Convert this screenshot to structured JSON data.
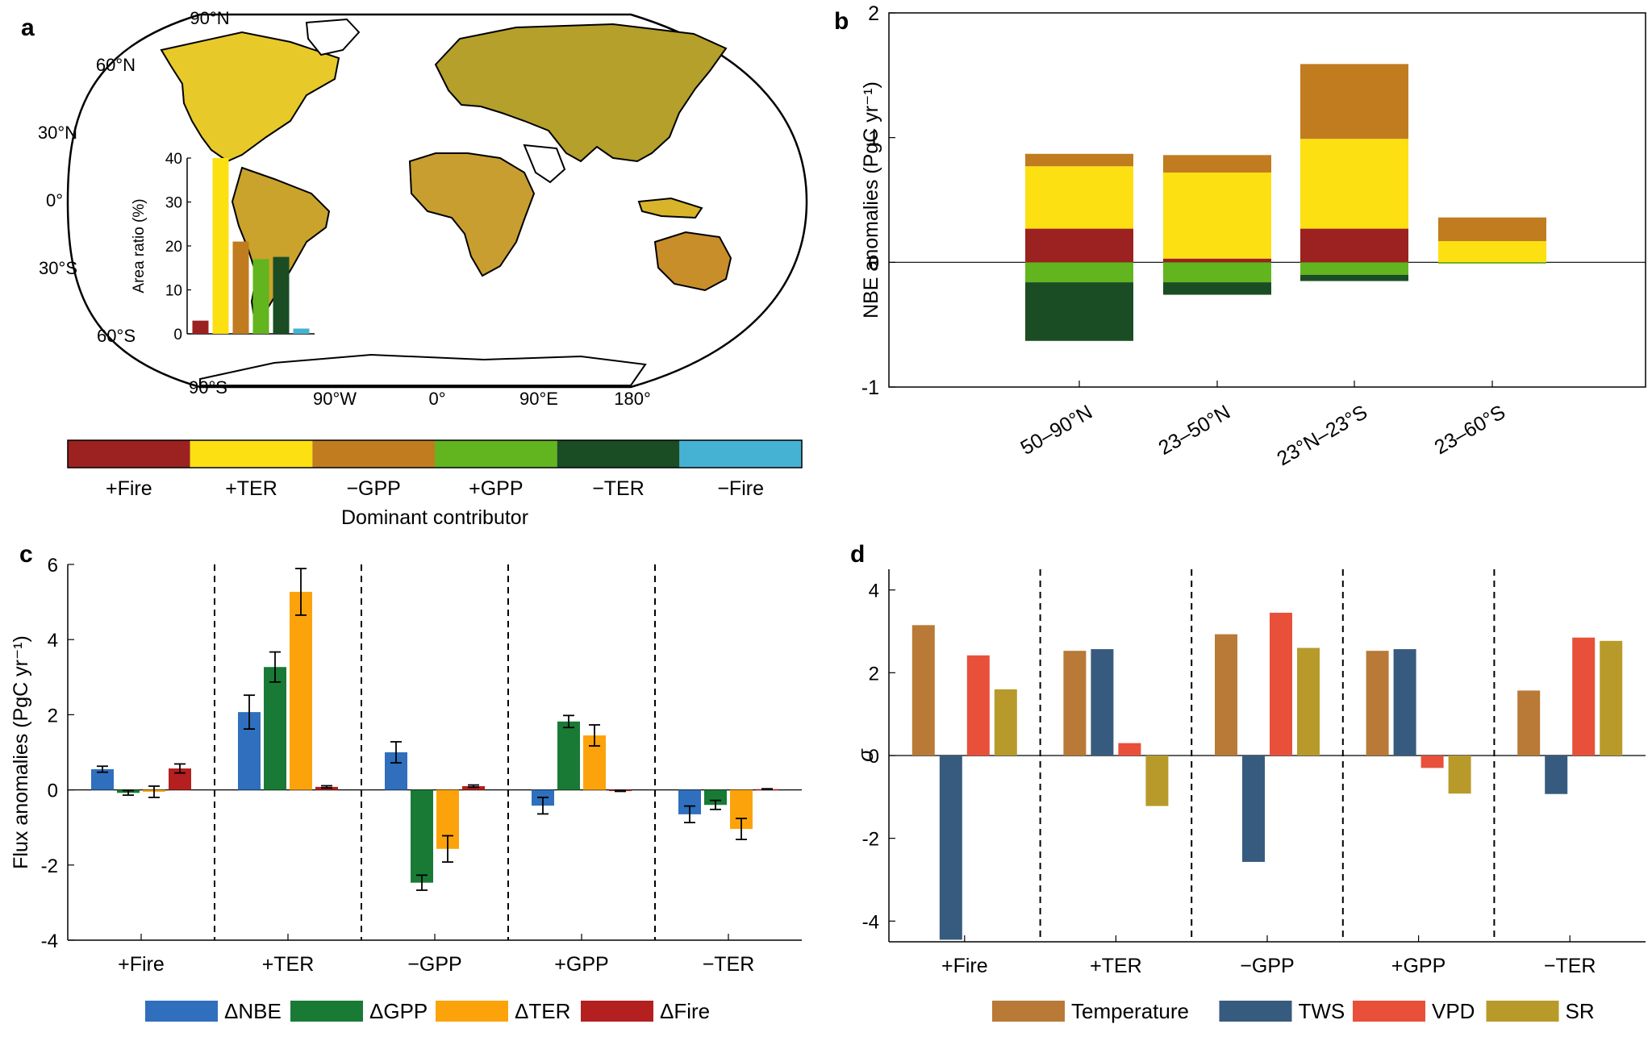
{
  "panels": {
    "a": {
      "letter": "a",
      "lat_labels": [
        "90°N",
        "60°N",
        "30°N",
        "0°",
        "30°S",
        "60°S",
        "90°S"
      ],
      "lon_labels": [
        "90°W",
        "0°",
        "90°E",
        "180°"
      ],
      "inset": {
        "ylabel": "Area ratio (%)",
        "ylim": [
          0,
          40
        ],
        "yticks": [
          0,
          10,
          20,
          30,
          40
        ],
        "values": [
          3,
          40,
          21,
          17,
          17.5,
          1.2
        ]
      }
    },
    "b": {
      "letter": "b"
    },
    "c": {
      "letter": "c"
    },
    "d": {
      "letter": "d"
    }
  },
  "legend_colorbar": {
    "title": "Dominant contributor",
    "items": [
      {
        "label": "+Fire",
        "color": "#9b2220"
      },
      {
        "label": "+TER",
        "color": "#fde011"
      },
      {
        "label": "−GPP",
        "color": "#c17c1f"
      },
      {
        "label": "+GPP",
        "color": "#62b51e"
      },
      {
        "label": "−TER",
        "color": "#1a4d24"
      },
      {
        "label": "−Fire",
        "color": "#46b2d3"
      }
    ]
  },
  "chart_data": [
    {
      "panel": "a-inset",
      "type": "bar",
      "ylabel": "Area ratio (%)",
      "ylim": [
        0,
        40
      ],
      "categories": [
        "+Fire",
        "+TER",
        "−GPP",
        "+GPP",
        "−TER",
        "−Fire"
      ],
      "values": [
        3,
        40,
        21,
        17,
        17.5,
        1.2
      ]
    },
    {
      "panel": "b",
      "type": "bar",
      "stacked": true,
      "ylabel": "NBE anomalies (PgC yr⁻¹)",
      "ylim": [
        -1,
        2
      ],
      "yticks": [
        -1,
        0,
        1,
        2
      ],
      "categories": [
        "50–90°N",
        "23–50°N",
        "23°N–23°S",
        "23–60°S"
      ],
      "series": [
        {
          "name": "+Fire",
          "color": "#9b2220",
          "values": [
            0.27,
            0.03,
            0.27,
            0.0
          ]
        },
        {
          "name": "+TER",
          "color": "#fde011",
          "values": [
            0.5,
            0.69,
            0.72,
            0.17
          ]
        },
        {
          "name": "−GPP",
          "color": "#c17c1f",
          "values": [
            0.1,
            0.14,
            0.6,
            0.19
          ]
        },
        {
          "name": "+GPP",
          "color": "#62b51e",
          "values": [
            -0.16,
            -0.16,
            -0.1,
            -0.01
          ]
        },
        {
          "name": "−TER",
          "color": "#1a4d24",
          "values": [
            -0.47,
            -0.1,
            -0.05,
            0.0
          ]
        }
      ]
    },
    {
      "panel": "c",
      "type": "bar",
      "ylabel": "Flux anomalies (PgC yr⁻¹)",
      "ylim": [
        -4,
        6
      ],
      "yticks": [
        -4,
        -2,
        0,
        2,
        4,
        6
      ],
      "categories": [
        "+Fire",
        "+TER",
        "−GPP",
        "+GPP",
        "−TER"
      ],
      "series": [
        {
          "name": "ΔNBE",
          "color": "#2f6fbd",
          "values": [
            0.55,
            2.07,
            1.0,
            -0.42,
            -0.65
          ],
          "errors": [
            0.08,
            0.45,
            0.28,
            0.22,
            0.22
          ]
        },
        {
          "name": "ΔGPP",
          "color": "#197a36",
          "values": [
            -0.08,
            3.27,
            -2.47,
            1.82,
            -0.4
          ],
          "errors": [
            0.06,
            0.4,
            0.2,
            0.16,
            0.12
          ]
        },
        {
          "name": "ΔTER",
          "color": "#fca30c",
          "values": [
            -0.05,
            5.27,
            -1.57,
            1.45,
            -1.04
          ],
          "errors": [
            0.15,
            0.62,
            0.35,
            0.28,
            0.28
          ]
        },
        {
          "name": "ΔFire",
          "color": "#b3201f",
          "values": [
            0.57,
            0.08,
            0.1,
            -0.03,
            0.02
          ],
          "errors": [
            0.12,
            0.03,
            0.03,
            0.01,
            0.01
          ]
        }
      ]
    },
    {
      "panel": "d",
      "type": "bar",
      "ylabel": "σ",
      "ylim": [
        -4.5,
        4.5
      ],
      "yticks": [
        -4,
        -2,
        0,
        2,
        4
      ],
      "categories": [
        "+Fire",
        "+TER",
        "−GPP",
        "+GPP",
        "−TER"
      ],
      "series": [
        {
          "name": "Temperature",
          "color": "#b87a36",
          "values": [
            3.15,
            2.53,
            2.93,
            2.53,
            1.57
          ]
        },
        {
          "name": "TWS",
          "color": "#375b7e",
          "values": [
            -4.45,
            2.57,
            -2.57,
            2.57,
            -0.93
          ]
        },
        {
          "name": "VPD",
          "color": "#e8503a",
          "values": [
            2.42,
            0.3,
            3.45,
            -0.3,
            2.85
          ]
        },
        {
          "name": "SR",
          "color": "#b89a2a",
          "values": [
            1.6,
            -1.22,
            2.6,
            -0.92,
            2.77
          ]
        }
      ]
    }
  ]
}
